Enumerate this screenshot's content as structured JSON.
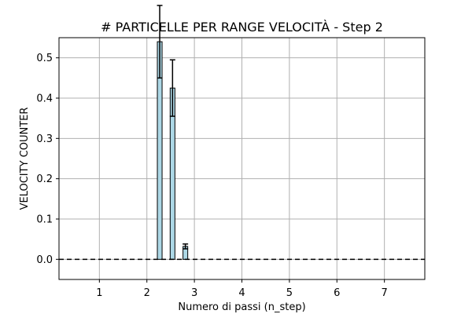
{
  "chart_data": {
    "type": "bar",
    "title": "# PARTICELLE PER RANGE VELOCITÀ - Step 2",
    "xlabel": "Numero di passi (n_step)",
    "ylabel": "VELOCITY COUNTER",
    "xlim": [
      0.15,
      7.85
    ],
    "ylim": [
      -0.05,
      0.55
    ],
    "xticks": [
      1,
      2,
      3,
      4,
      5,
      6,
      7
    ],
    "yticks": [
      0.0,
      0.1,
      0.2,
      0.3,
      0.4,
      0.5
    ],
    "ytick_labels": [
      "0.0",
      "0.1",
      "0.2",
      "0.3",
      "0.4",
      "0.5"
    ],
    "grid": true,
    "bar_width": 0.1,
    "bars": [
      {
        "x": 2.27,
        "value": 0.54,
        "error": 0.09
      },
      {
        "x": 2.54,
        "value": 0.425,
        "error": 0.07
      },
      {
        "x": 2.81,
        "value": 0.032,
        "error": 0.006
      }
    ],
    "hline": {
      "y": 0.0,
      "style": "dashed"
    },
    "colors": {
      "bar_fill": "#add8e6",
      "bar_edge": "#000000",
      "grid": "#b0b0b0",
      "errorbar": "#000000"
    }
  }
}
